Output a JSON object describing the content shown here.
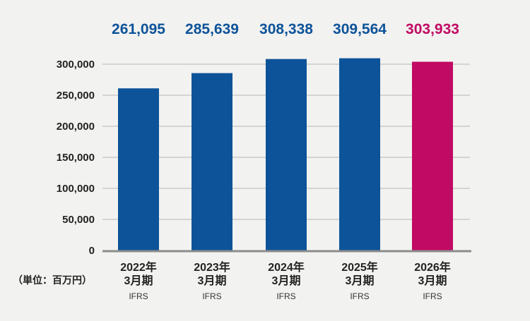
{
  "chart_data": {
    "type": "bar",
    "unit_label": "（単位：百万円）",
    "categories": [
      {
        "year": "2022年",
        "period": "3月期",
        "standard": "IFRS"
      },
      {
        "year": "2023年",
        "period": "3月期",
        "standard": "IFRS"
      },
      {
        "year": "2024年",
        "period": "3月期",
        "standard": "IFRS"
      },
      {
        "year": "2025年",
        "period": "3月期",
        "standard": "IFRS"
      },
      {
        "year": "2026年",
        "period": "3月期",
        "standard": "IFRS"
      }
    ],
    "values": [
      261095,
      285639,
      308338,
      309564,
      303933
    ],
    "value_labels": [
      "261,095",
      "285,639",
      "308,338",
      "309,564",
      "303,933"
    ],
    "bar_colors": [
      "#0d5399",
      "#0d5399",
      "#0d5399",
      "#0d5399",
      "#c10a63"
    ],
    "label_colors": [
      "#0d5399",
      "#0d5399",
      "#0d5399",
      "#0d5399",
      "#c10a63"
    ],
    "ylim": [
      0,
      300000
    ],
    "yticks": [
      0,
      50000,
      100000,
      150000,
      200000,
      250000,
      300000
    ],
    "ytick_labels": [
      "0",
      "50,000",
      "100,000",
      "150,000",
      "200,000",
      "250,000",
      "300,000"
    ],
    "grid": true,
    "colors": {
      "gridline": "#b5b5b5",
      "baseline": "#8c8c8c",
      "background": "#f2f2f0"
    }
  }
}
